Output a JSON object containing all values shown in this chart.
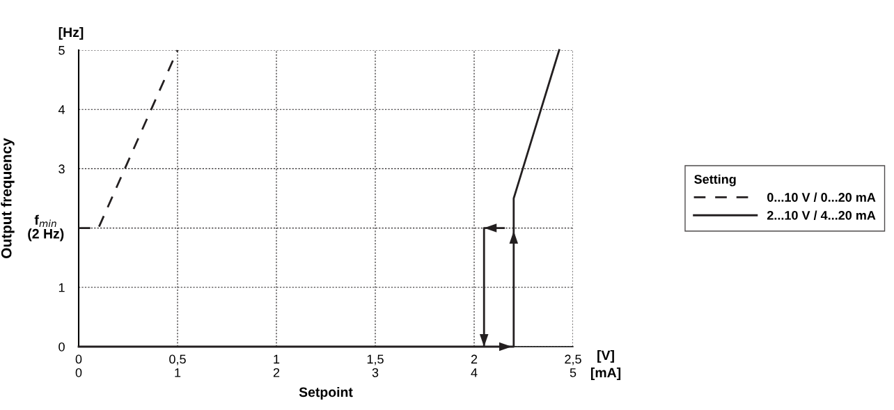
{
  "chart_data": {
    "type": "line",
    "xlabel": "Setpoint",
    "ylabel": "Output frequency",
    "legend_title": "Setting",
    "annotations": [
      "[Hz]",
      "[V]",
      "[mA]",
      {
        "text": "f$_{min}$\n(2 Hz)",
        "x": 0,
        "y": 2
      }
    ],
    "series": [
      {
        "name": "0...10 V / 0...20 mA",
        "color": "#231f20",
        "line_style": "dashed",
        "x": [
          0,
          0.1,
          0.5
        ],
        "values": [
          2,
          2,
          5
        ]
      },
      {
        "name": "2...10 V / 4...20 mA",
        "color": "#231f20",
        "line_style": "solid",
        "x": [
          0,
          2.2,
          2.2,
          2.43,
          null,
          2.15,
          2.05,
          2.05
        ],
        "values": [
          0,
          0,
          2.5,
          5,
          null,
          2,
          2,
          0
        ]
      }
    ],
    "xlim": [
      0,
      2.5
    ],
    "ylim": [
      0,
      5
    ],
    "xticks": [
      0,
      {
        "value": 0.5,
        "label": "0,5"
      },
      1,
      {
        "value": 1.5,
        "label": "1,5"
      },
      2,
      {
        "value": 2.5,
        "label": "2,5"
      }
    ],
    "yticks": [
      0,
      1,
      {
        "value": 2,
        "label": null
      },
      3,
      4,
      5
    ],
    "x2lim": [
      0,
      5
    ],
    "x2ticks": [
      0,
      1,
      2,
      3,
      4,
      5
    ],
    "grid": true,
    "legend": "right"
  }
}
